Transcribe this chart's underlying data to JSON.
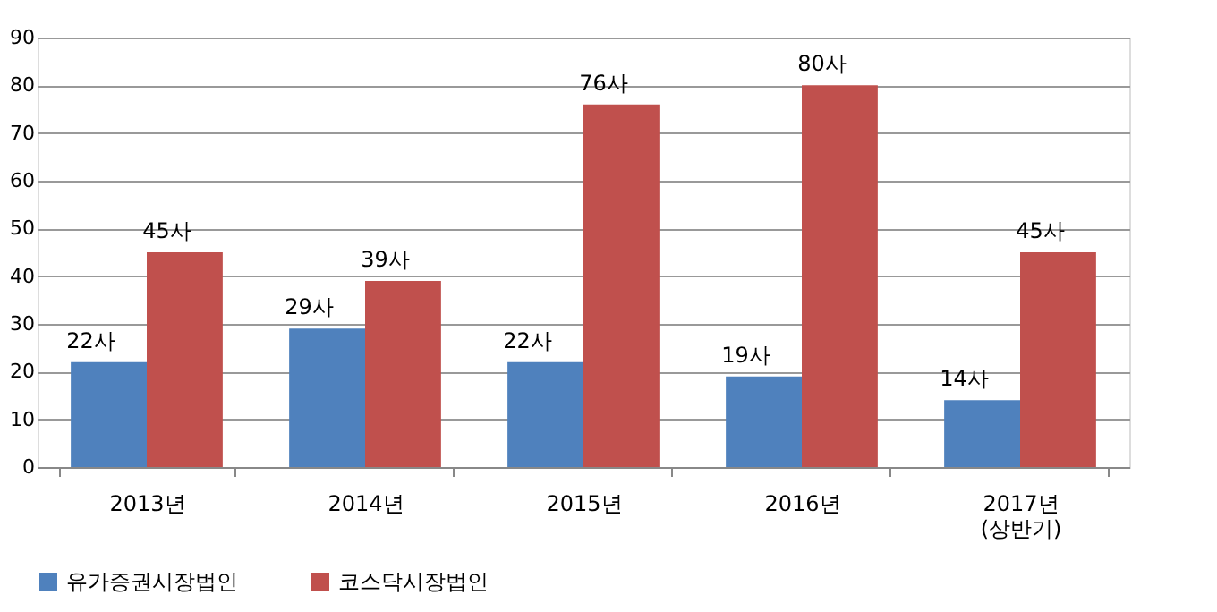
{
  "chart_data": {
    "type": "bar",
    "categories": [
      "2013년",
      "2014년",
      "2015년",
      "2016년",
      "2017년 (상반기)"
    ],
    "series": [
      {
        "name": "유가증권시장법인",
        "color": "#4f81bd",
        "values": [
          22,
          29,
          22,
          19,
          14
        ],
        "value_labels": [
          "22사",
          "29사",
          "22사",
          "19사",
          "14사"
        ]
      },
      {
        "name": "코스닥시장법인",
        "color": "#c0504d",
        "values": [
          45,
          39,
          76,
          80,
          45
        ],
        "value_labels": [
          "45사",
          "39사",
          "76사",
          "80사",
          "45사"
        ]
      }
    ],
    "ylim": [
      0,
      90
    ],
    "yticks": [
      0,
      10,
      20,
      30,
      40,
      50,
      60,
      70,
      80,
      90
    ],
    "grid": "y",
    "legend": "bottom"
  }
}
